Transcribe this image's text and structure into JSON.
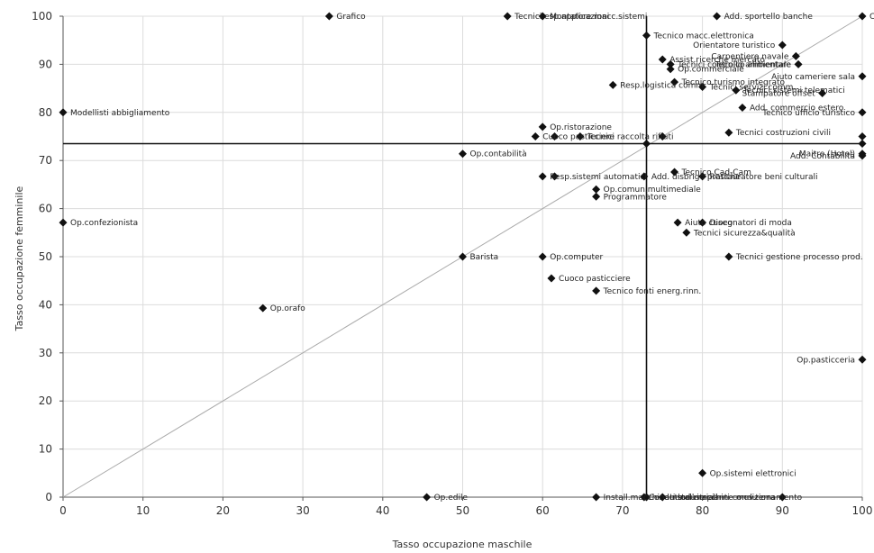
{
  "chart_data": {
    "type": "scatter",
    "title": "",
    "xlabel": "Tasso occupazione maschile",
    "ylabel": "Tasso occupazione femminile",
    "xlim": [
      0,
      100
    ],
    "ylim": [
      0,
      100
    ],
    "xticks": [
      0,
      10,
      20,
      30,
      40,
      50,
      60,
      70,
      80,
      90,
      100
    ],
    "yticks": [
      0,
      10,
      20,
      30,
      40,
      50,
      60,
      70,
      80,
      90,
      100
    ],
    "grid": true,
    "reference_lines": {
      "vertical_x": 73,
      "horizontal_y": 73.5,
      "diagonal": "y = x"
    },
    "marker_color": "#111111",
    "points": [
      {
        "label": "Grafico",
        "x": 33.3,
        "y": 100
      },
      {
        "label": "Tecnici esp.applicazioni",
        "x": 55.6,
        "y": 100
      },
      {
        "label": "Montatore macc.sistemi",
        "x": 60,
        "y": 100
      },
      {
        "label": "Add. sportello banche",
        "x": 81.8,
        "y": 100
      },
      {
        "label": "Cont",
        "x": 100,
        "y": 100
      },
      {
        "label": "Tecnico macc.elettronica",
        "x": 73,
        "y": 96
      },
      {
        "label": "Orientatore turistico",
        "x": 90,
        "y": 94
      },
      {
        "label": "Assist.ricerche mercato",
        "x": 75,
        "y": 91
      },
      {
        "label": "Tecnici controllo ambientale",
        "x": 76,
        "y": 90
      },
      {
        "label": "Carpentiere navale",
        "x": 91.7,
        "y": 91.7
      },
      {
        "label": "Op.commerciale",
        "x": 76,
        "y": 89
      },
      {
        "label": "Tecnico alimentare",
        "x": 92,
        "y": 90
      },
      {
        "label": "Resp.logistica comm.",
        "x": 68.8,
        "y": 85.7
      },
      {
        "label": "Tecnico turismo integrato",
        "x": 76.5,
        "y": 86.3
      },
      {
        "label": "Tecnici servizi comm.",
        "x": 80,
        "y": 85.3
      },
      {
        "label": "Tecnici sistemi telematici",
        "x": 84.2,
        "y": 84.6
      },
      {
        "label": "Aiuto cameriere sala",
        "x": 100,
        "y": 87.5
      },
      {
        "label": "Stampatore offset",
        "x": 95,
        "y": 84
      },
      {
        "label": "Modellisti abbigliamento",
        "x": 0,
        "y": 80
      },
      {
        "label": "Add. commercio estero",
        "x": 85,
        "y": 81
      },
      {
        "label": "Tecnico ufficio turistico",
        "x": 100,
        "y": 80
      },
      {
        "label": "Op.ristorazione",
        "x": 60,
        "y": 77
      },
      {
        "label": "Tecnici raccolta rifiuti",
        "x": 64.7,
        "y": 75
      },
      {
        "label": "Cuoco pasticciere",
        "x": 59.1,
        "y": 75
      },
      {
        "label": "Tecnici costruzioni civili",
        "x": 83.3,
        "y": 75.8
      },
      {
        "label": "",
        "x": 61.5,
        "y": 75
      },
      {
        "label": "",
        "x": 75,
        "y": 75
      },
      {
        "label": "",
        "x": 100,
        "y": 75
      },
      {
        "label": "",
        "x": 73,
        "y": 73.5
      },
      {
        "label": "",
        "x": 100,
        "y": 73.5
      },
      {
        "label": "Op.contabilità",
        "x": 50,
        "y": 71.4
      },
      {
        "label": "Add. disbrigo pratiche",
        "x": 72.7,
        "y": 66.7
      },
      {
        "label": "Maitre (Hotel)",
        "x": 100,
        "y": 71.4
      },
      {
        "label": "Add. Contabilità",
        "x": 100,
        "y": 71
      },
      {
        "label": "Resp.sistemi automatici",
        "x": 60,
        "y": 66.7
      },
      {
        "label": "",
        "x": 61.5,
        "y": 66.7
      },
      {
        "label": "Tecnico Cad-Cam",
        "x": 76.5,
        "y": 67.6
      },
      {
        "label": "Restauratore beni culturali",
        "x": 80,
        "y": 66.7
      },
      {
        "label": "Op.comun.multimediale",
        "x": 66.7,
        "y": 64
      },
      {
        "label": "Programmatore",
        "x": 66.7,
        "y": 62.5
      },
      {
        "label": "Disegnatori di moda",
        "x": 80,
        "y": 57.1
      },
      {
        "label": "Aiuto cuoco",
        "x": 76.9,
        "y": 57.1
      },
      {
        "label": "Op.confezionista",
        "x": 0,
        "y": 57.1
      },
      {
        "label": "Tecnici sicurezza&qualità",
        "x": 78,
        "y": 55
      },
      {
        "label": "Op.computer",
        "x": 60,
        "y": 50
      },
      {
        "label": "Barista",
        "x": 50,
        "y": 50
      },
      {
        "label": "Tecnici gestione processo prod.",
        "x": 83.3,
        "y": 50
      },
      {
        "label": "Cuoco pasticciere",
        "x": 61.1,
        "y": 45.5
      },
      {
        "label": "Tecnico fonti energ.rinn.",
        "x": 66.7,
        "y": 42.9
      },
      {
        "label": "Op.orafo",
        "x": 25,
        "y": 39.3
      },
      {
        "label": "Op.pasticceria",
        "x": 100,
        "y": 28.6
      },
      {
        "label": "Op.sistemi elettronici",
        "x": 80,
        "y": 5
      },
      {
        "label": "Install.macchinari industriali",
        "x": 66.7,
        "y": 0
      },
      {
        "label": "Install.impianti condizionamento",
        "x": 75,
        "y": 0
      },
      {
        "label": "Conduttori macchine mov.terra",
        "x": 90,
        "y": 0
      },
      {
        "label": "Op.edile",
        "x": 45.5,
        "y": 0
      },
      {
        "label": "",
        "x": 72.7,
        "y": 0
      },
      {
        "label": "",
        "x": 73,
        "y": 0
      }
    ]
  }
}
